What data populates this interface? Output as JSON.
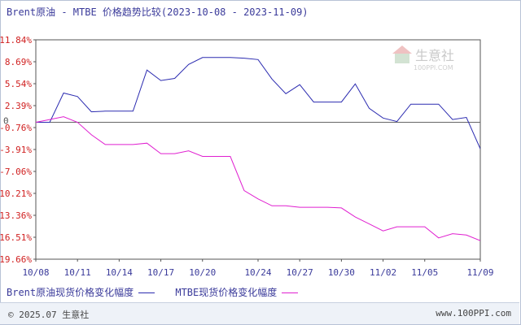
{
  "title": "Brent原油 - MTBE 价格趋势比较(2023-10-08 - 2023-11-09)",
  "watermark": {
    "name": "生意社",
    "url": "100PPI.COM"
  },
  "legend": [
    {
      "label": "Brent原油现货价格变化幅度",
      "color": "#2b2bb0"
    },
    {
      "label": "MTBE现货价格变化幅度",
      "color": "#e020d0"
    }
  ],
  "footer": {
    "copyright": "© 2025.07 生意社",
    "site": "www.100PPI.com"
  },
  "chart_data": {
    "type": "line",
    "y_tick_labels": [
      "11.84%",
      "8.69%",
      "5.54%",
      "2.39%",
      "-0.76%",
      "-3.91%",
      "-7.06%",
      "-10.21%",
      "-13.36%",
      "-16.51%",
      "-19.66%"
    ],
    "y_ticks": [
      11.84,
      8.69,
      5.54,
      2.39,
      -0.76,
      -3.91,
      -7.06,
      -10.21,
      -13.36,
      -16.51,
      -19.66
    ],
    "ylim": [
      -19.66,
      11.84
    ],
    "zero_label": "0",
    "x_tick_labels": [
      "10/08",
      "10/11",
      "10/14",
      "10/17",
      "10/20",
      "10/24",
      "10/27",
      "10/30",
      "11/02",
      "11/05",
      "11/09"
    ],
    "x_tick_dates": [
      "2023-10-08",
      "2023-10-11",
      "2023-10-14",
      "2023-10-17",
      "2023-10-20",
      "2023-10-24",
      "2023-10-27",
      "2023-10-30",
      "2023-11-02",
      "2023-11-05",
      "2023-11-09"
    ],
    "xlim": [
      "2023-10-08",
      "2023-11-09"
    ],
    "series": [
      {
        "name": "Brent原油现货价格变化幅度",
        "color": "#2b2bb0",
        "points": [
          [
            "2023-10-08",
            0
          ],
          [
            "2023-10-09",
            0
          ],
          [
            "2023-10-10",
            4.2
          ],
          [
            "2023-10-11",
            3.7
          ],
          [
            "2023-10-12",
            1.5
          ],
          [
            "2023-10-13",
            1.6
          ],
          [
            "2023-10-15",
            1.6
          ],
          [
            "2023-10-16",
            7.5
          ],
          [
            "2023-10-17",
            6.0
          ],
          [
            "2023-10-18",
            6.3
          ],
          [
            "2023-10-19",
            8.3
          ],
          [
            "2023-10-20",
            9.3
          ],
          [
            "2023-10-22",
            9.3
          ],
          [
            "2023-10-23",
            9.2
          ],
          [
            "2023-10-24",
            9.0
          ],
          [
            "2023-10-25",
            6.2
          ],
          [
            "2023-10-26",
            4.1
          ],
          [
            "2023-10-27",
            5.4
          ],
          [
            "2023-10-28",
            2.9
          ],
          [
            "2023-10-29",
            2.9
          ],
          [
            "2023-10-30",
            2.9
          ],
          [
            "2023-10-31",
            5.5
          ],
          [
            "2023-11-01",
            2.0
          ],
          [
            "2023-11-02",
            0.6
          ],
          [
            "2023-11-03",
            0.1
          ],
          [
            "2023-11-04",
            2.6
          ],
          [
            "2023-11-05",
            2.6
          ],
          [
            "2023-11-06",
            2.6
          ],
          [
            "2023-11-07",
            0.4
          ],
          [
            "2023-11-08",
            0.7
          ],
          [
            "2023-11-09",
            -3.8
          ],
          [
            "2023-11-10",
            -6.2
          ]
        ]
      },
      {
        "name": "MTBE现货价格变化幅度",
        "color": "#e020d0",
        "points": [
          [
            "2023-10-08",
            0
          ],
          [
            "2023-10-09",
            0.4
          ],
          [
            "2023-10-10",
            0.8
          ],
          [
            "2023-10-11",
            0
          ],
          [
            "2023-10-12",
            -1.8
          ],
          [
            "2023-10-13",
            -3.2
          ],
          [
            "2023-10-15",
            -3.2
          ],
          [
            "2023-10-16",
            -3.0
          ],
          [
            "2023-10-17",
            -4.5
          ],
          [
            "2023-10-18",
            -4.5
          ],
          [
            "2023-10-19",
            -4.1
          ],
          [
            "2023-10-20",
            -4.9
          ],
          [
            "2023-10-22",
            -4.9
          ],
          [
            "2023-10-23",
            -9.8
          ],
          [
            "2023-10-24",
            -11.0
          ],
          [
            "2023-10-25",
            -12.0
          ],
          [
            "2023-10-26",
            -12.0
          ],
          [
            "2023-10-27",
            -12.2
          ],
          [
            "2023-10-29",
            -12.2
          ],
          [
            "2023-10-30",
            -12.3
          ],
          [
            "2023-10-31",
            -13.6
          ],
          [
            "2023-11-01",
            -14.6
          ],
          [
            "2023-11-02",
            -15.6
          ],
          [
            "2023-11-03",
            -15.0
          ],
          [
            "2023-11-04",
            -15.0
          ],
          [
            "2023-11-05",
            -15.0
          ],
          [
            "2023-11-06",
            -16.6
          ],
          [
            "2023-11-07",
            -16.0
          ],
          [
            "2023-11-08",
            -16.2
          ],
          [
            "2023-11-09",
            -17.0
          ]
        ]
      }
    ],
    "grid": false
  }
}
